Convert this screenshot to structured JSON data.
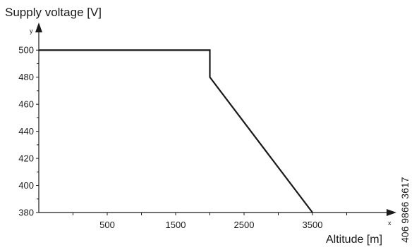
{
  "chart_data": {
    "type": "line",
    "ylabel": "Supply voltage [V]",
    "xlabel": "Altitude [m]",
    "x_axis_letter": "x",
    "y_axis_letter": "y",
    "side_code": "406 9866 3617",
    "xlim": [
      -500,
      4500
    ],
    "ylim": [
      380,
      510
    ],
    "x_ticks": [
      500,
      1500,
      2500,
      3500
    ],
    "y_ticks": [
      380,
      400,
      420,
      440,
      460,
      480,
      500
    ],
    "series": [
      {
        "x": [
          -500,
          2000,
          2000,
          3500
        ],
        "y": [
          500,
          500,
          480,
          380
        ]
      }
    ],
    "grid": false,
    "line_color": "#1a1a1a"
  }
}
